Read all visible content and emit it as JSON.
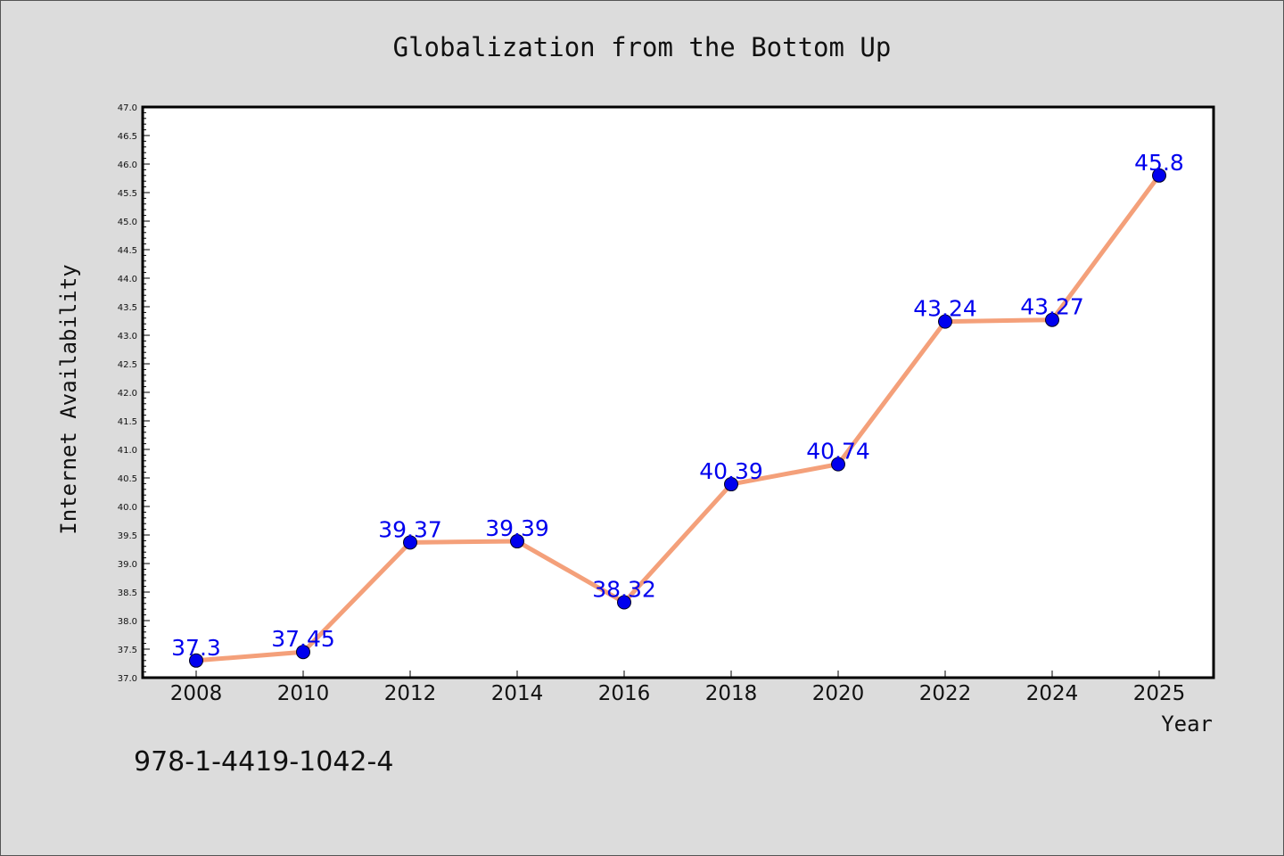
{
  "chart_data": {
    "type": "line",
    "title": "Globalization from the Bottom Up",
    "xlabel": "Year",
    "ylabel": "Internet Availability",
    "ylim": [
      37.0,
      47.0
    ],
    "y_ticks": [
      "37.0",
      "37.5",
      "38.0",
      "38.5",
      "39.0",
      "39.5",
      "40.0",
      "40.5",
      "41.0",
      "41.5",
      "42.0",
      "42.5",
      "43.0",
      "43.5",
      "44.0",
      "44.5",
      "45.0",
      "45.5",
      "46.0",
      "46.5",
      "47.0"
    ],
    "categories": [
      "2008",
      "2010",
      "2012",
      "2014",
      "2016",
      "2018",
      "2020",
      "2022",
      "2024",
      "2025"
    ],
    "series": [
      {
        "values": [
          37.3,
          37.45,
          39.37,
          39.39,
          38.32,
          40.39,
          40.74,
          43.24,
          43.27,
          45.8
        ],
        "data_labels": [
          "37.3",
          "37.45",
          "39.37",
          "39.39",
          "38.32",
          "40.39",
          "40.74",
          "43.24",
          "43.27",
          "45.8"
        ],
        "line_color": "#f4a07a",
        "marker_color": "#0000ee",
        "label_color": "#0000ee"
      }
    ],
    "grid": false,
    "legend": "none"
  },
  "footer": {
    "isbn": "978-1-4419-1042-4"
  }
}
